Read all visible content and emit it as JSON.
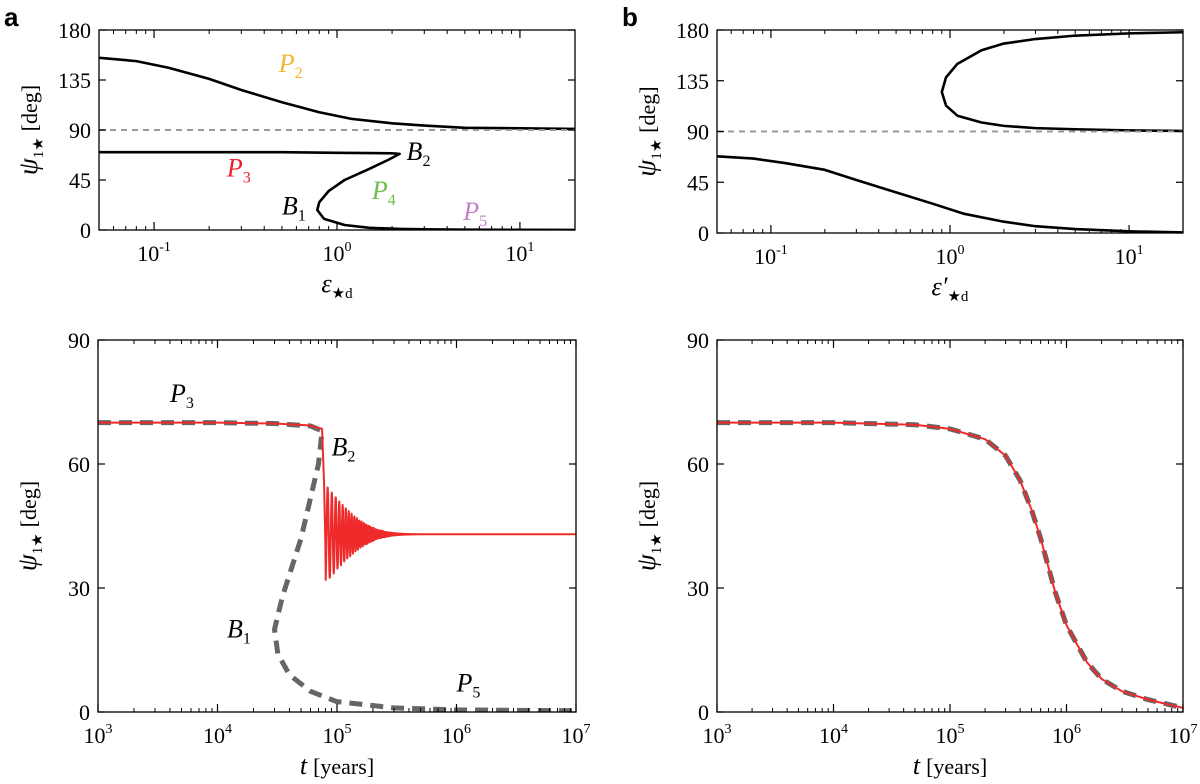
{
  "panel_labels": [
    "a",
    "b"
  ],
  "chart_data": [
    {
      "id": "a-top",
      "type": "line",
      "xscale": "log",
      "xlim": [
        0.05,
        20
      ],
      "ylim": [
        0,
        180
      ],
      "xticks": [
        {
          "v": 0.1,
          "base": "10",
          "exp": "-1"
        },
        {
          "v": 1,
          "base": "10",
          "exp": "0"
        },
        {
          "v": 10,
          "base": "10",
          "exp": "1"
        }
      ],
      "yticks": [
        0,
        45,
        90,
        135,
        180
      ],
      "xlabel": {
        "main": "ε",
        "sub": "★d"
      },
      "ylabel": {
        "main": "ψ",
        "sub": "1★",
        "unit": "[deg]"
      },
      "series": [
        {
          "name": "P2 branch",
          "color": "#000000",
          "style": "solid",
          "x": [
            0.05,
            0.08,
            0.12,
            0.2,
            0.3,
            0.5,
            0.8,
            1.2,
            2,
            3,
            5,
            10,
            20
          ],
          "y": [
            155,
            152,
            146,
            136,
            126,
            115,
            106,
            100,
            96,
            94,
            92,
            91.5,
            91
          ]
        },
        {
          "name": "P3-P4-P5 branch",
          "color": "#000000",
          "style": "solid",
          "x": [
            0.05,
            0.5,
            1,
            1.5,
            2,
            2.2,
            1.9,
            1.5,
            1.1,
            0.9,
            0.8,
            0.78,
            0.85,
            1.1,
            1.5,
            2.2,
            3,
            5,
            10,
            20
          ],
          "y": [
            70,
            70,
            69.5,
            69.2,
            69,
            68.5,
            63,
            55,
            45,
            35,
            25,
            18,
            10,
            4.5,
            2,
            1,
            0.6,
            0.3,
            0.15,
            0.05
          ]
        },
        {
          "name": "90 deg reference",
          "color": "#999999",
          "style": "dashed",
          "x": [
            0.05,
            20
          ],
          "y": [
            90,
            90
          ]
        }
      ],
      "annotations": [
        {
          "text": "P",
          "sub": "2",
          "color": "#f2b631",
          "at": [
            0.48,
            142
          ]
        },
        {
          "text": "P",
          "sub": "3",
          "color": "#e8222e",
          "at": [
            0.25,
            48
          ]
        },
        {
          "text": "P",
          "sub": "4",
          "color": "#6cc04a",
          "at": [
            1.55,
            28
          ]
        },
        {
          "text": "P",
          "sub": "5",
          "color": "#c67fc9",
          "at": [
            4.9,
            9
          ]
        },
        {
          "text": "B",
          "sub": "1",
          "color": "#000000",
          "at": [
            0.5,
            14
          ]
        },
        {
          "text": "B",
          "sub": "2",
          "color": "#000000",
          "at": [
            2.4,
            63
          ]
        }
      ]
    },
    {
      "id": "b-top",
      "type": "line",
      "xscale": "log",
      "xlim": [
        0.05,
        20
      ],
      "ylim": [
        0,
        180
      ],
      "xticks": [
        {
          "v": 0.1,
          "base": "10",
          "exp": "-1"
        },
        {
          "v": 1,
          "base": "10",
          "exp": "0"
        },
        {
          "v": 10,
          "base": "10",
          "exp": "1"
        }
      ],
      "yticks": [
        0,
        45,
        90,
        135,
        180
      ],
      "xlabel": {
        "main": "ε′",
        "sub": "★d"
      },
      "ylabel": {
        "main": "ψ",
        "sub": "1★",
        "unit": "[deg]"
      },
      "series": [
        {
          "name": "upper branch",
          "color": "#000000",
          "style": "solid",
          "x": [
            20,
            10,
            5,
            3,
            2,
            1.5,
            1.1,
            0.95,
            0.9,
            0.95,
            1.1,
            1.5,
            2,
            3,
            5,
            10,
            20
          ],
          "y": [
            178,
            177,
            175,
            172,
            168,
            162,
            150,
            138,
            125,
            113,
            104,
            98,
            95,
            93,
            92,
            91,
            90.5
          ]
        },
        {
          "name": "lower branch",
          "color": "#000000",
          "style": "solid",
          "x": [
            0.05,
            0.08,
            0.12,
            0.2,
            0.3,
            0.5,
            0.8,
            1.2,
            2,
            3,
            5,
            10,
            20
          ],
          "y": [
            68,
            66,
            62,
            56,
            47,
            36,
            26,
            17,
            10,
            6,
            3.5,
            1.5,
            0.5
          ]
        },
        {
          "name": "90 deg reference",
          "color": "#999999",
          "style": "dashed",
          "x": [
            0.05,
            20
          ],
          "y": [
            90,
            90
          ]
        }
      ],
      "annotations": []
    },
    {
      "id": "a-bottom",
      "type": "line",
      "xscale": "log",
      "xlim": [
        1000,
        10000000
      ],
      "ylim": [
        0,
        90
      ],
      "xticks": [
        {
          "v": 1000,
          "base": "10",
          "exp": "3"
        },
        {
          "v": 10000,
          "base": "10",
          "exp": "4"
        },
        {
          "v": 100000,
          "base": "10",
          "exp": "5"
        },
        {
          "v": 1000000,
          "base": "10",
          "exp": "6"
        },
        {
          "v": 10000000,
          "base": "10",
          "exp": "7"
        }
      ],
      "yticks": [
        0,
        30,
        60,
        90
      ],
      "xlabel": {
        "main": "t",
        "sub": "",
        "unit": "[years]"
      },
      "ylabel": {
        "main": "ψ",
        "sub": "1★",
        "unit": "[deg]"
      },
      "series": [
        {
          "name": "fixed point (P3 → B2 → B1 → P5)",
          "color": "#666666",
          "style": "dashed",
          "x": [
            1000,
            10000,
            30000,
            60000,
            75000,
            70000,
            50000,
            35000,
            30000,
            32000,
            40000,
            60000,
            100000,
            300000,
            1000000,
            10000000
          ],
          "y": [
            70,
            70,
            69.8,
            69.2,
            68,
            60,
            42,
            28,
            20,
            14,
            9,
            5,
            2.5,
            1,
            0.5,
            0.3
          ]
        },
        {
          "name": "numerical evolution",
          "color": "#ee2a2a",
          "style": "solid",
          "damped_oscillation": {
            "t_start": 80000,
            "t_end": 10000000,
            "center": 43,
            "amplitude": 12,
            "decay_time": 60000,
            "period": 7000
          },
          "x": [
            1000,
            10000,
            30000,
            60000,
            75000,
            78000,
            80000
          ],
          "y": [
            70,
            70,
            69.8,
            69.3,
            68.5,
            55,
            40
          ]
        }
      ],
      "annotations": [
        {
          "text": "P",
          "sub": "3",
          "color": "#000000",
          "at": [
            4000,
            75
          ]
        },
        {
          "text": "B",
          "sub": "2",
          "color": "#000000",
          "at": [
            90000,
            62
          ]
        },
        {
          "text": "B",
          "sub": "1",
          "color": "#000000",
          "at": [
            12000,
            18
          ]
        },
        {
          "text": "P",
          "sub": "5",
          "color": "#000000",
          "at": [
            1000000,
            5
          ]
        }
      ]
    },
    {
      "id": "b-bottom",
      "type": "line",
      "xscale": "log",
      "xlim": [
        1000,
        10000000
      ],
      "ylim": [
        0,
        90
      ],
      "xticks": [
        {
          "v": 1000,
          "base": "10",
          "exp": "3"
        },
        {
          "v": 10000,
          "base": "10",
          "exp": "4"
        },
        {
          "v": 100000,
          "base": "10",
          "exp": "5"
        },
        {
          "v": 1000000,
          "base": "10",
          "exp": "6"
        },
        {
          "v": 10000000,
          "base": "10",
          "exp": "7"
        }
      ],
      "yticks": [
        0,
        30,
        60,
        90
      ],
      "xlabel": {
        "main": "t",
        "sub": "",
        "unit": "[years]"
      },
      "ylabel": {
        "main": "ψ",
        "sub": "1★",
        "unit": "[deg]"
      },
      "series": [
        {
          "name": "fixed point",
          "color": "#666666",
          "style": "dashed",
          "x": [
            1000,
            10000,
            50000,
            100000,
            200000,
            300000,
            400000,
            500000,
            600000,
            700000,
            800000,
            1000000,
            1500000,
            2000000,
            3000000,
            5000000,
            10000000
          ],
          "y": [
            70,
            70,
            69.5,
            68.5,
            66,
            62,
            56,
            49,
            42,
            35,
            29,
            21,
            12,
            8,
            5,
            3,
            1
          ]
        },
        {
          "name": "numerical evolution",
          "color": "#ee2a2a",
          "style": "solid",
          "x": [
            1000,
            10000,
            50000,
            100000,
            200000,
            300000,
            400000,
            500000,
            600000,
            700000,
            800000,
            1000000,
            1500000,
            2000000,
            3000000,
            5000000,
            10000000
          ],
          "y": [
            70,
            70,
            69.5,
            68.5,
            66,
            62,
            56,
            49,
            42,
            35,
            29,
            21,
            12,
            8,
            5,
            3,
            1
          ]
        }
      ],
      "annotations": []
    }
  ]
}
